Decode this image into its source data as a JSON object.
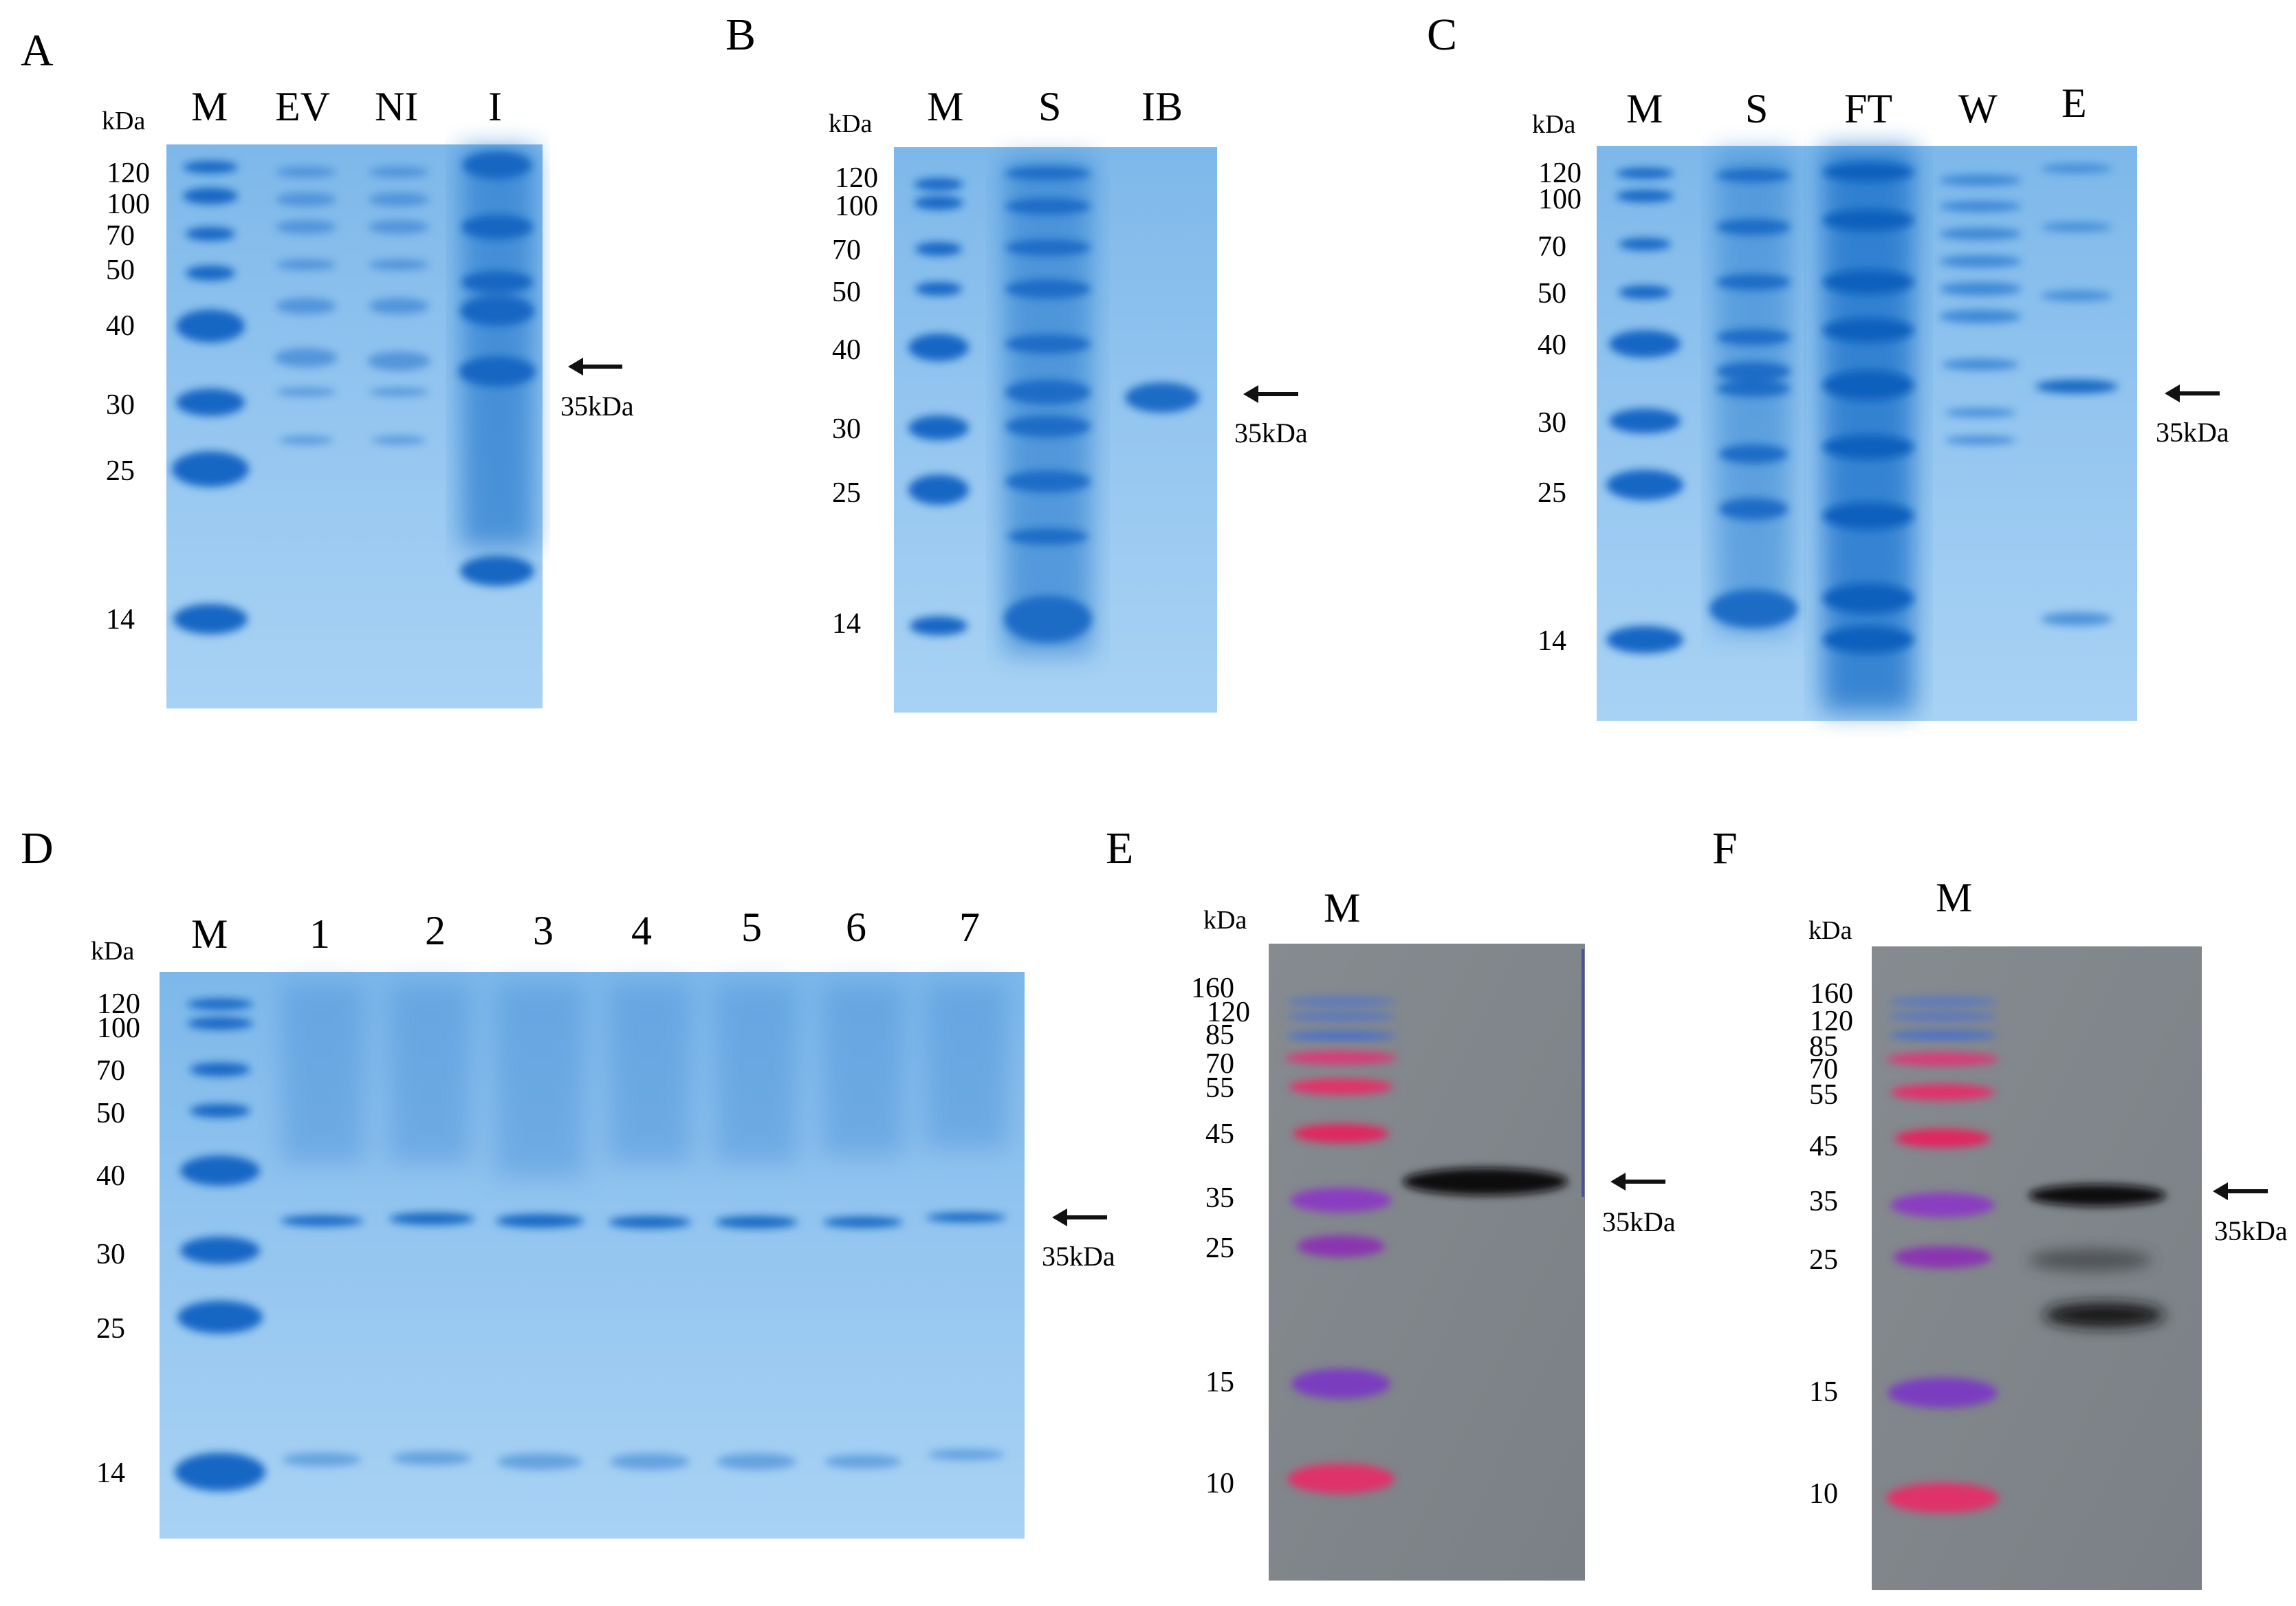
{
  "kda_unit": "kDa",
  "band_note": "35kDa",
  "panels": [
    {
      "id": "A",
      "lanes": [
        "M",
        "EV",
        "NI",
        "I"
      ],
      "markers": [
        "120",
        "100",
        "70",
        "50",
        "40",
        "30",
        "25",
        "14"
      ]
    },
    {
      "id": "B",
      "lanes": [
        "M",
        "S",
        "IB"
      ],
      "markers": [
        "120",
        "100",
        "70",
        "50",
        "40",
        "30",
        "25",
        "14"
      ]
    },
    {
      "id": "C",
      "lanes": [
        "M",
        "S",
        "FT",
        "W",
        "E"
      ],
      "markers": [
        "120",
        "100",
        "70",
        "50",
        "40",
        "30",
        "25",
        "14"
      ]
    },
    {
      "id": "D",
      "lanes": [
        "M",
        "1",
        "2",
        "3",
        "4",
        "5",
        "6",
        "7"
      ],
      "markers": [
        "120",
        "100",
        "70",
        "50",
        "40",
        "30",
        "25",
        "14"
      ]
    },
    {
      "id": "E",
      "lanes": [
        "M"
      ],
      "markers": [
        "160",
        "120",
        "85",
        "70",
        "55",
        "45",
        "35",
        "25",
        "15",
        "10"
      ]
    },
    {
      "id": "F",
      "lanes": [
        "M"
      ],
      "markers": [
        "160",
        "120",
        "85",
        "70",
        "55",
        "45",
        "35",
        "25",
        "15",
        "10"
      ]
    }
  ],
  "colors": {
    "gel_background": "#9ccbef",
    "gel_band": "#1a6fc8",
    "blot_background": "#7f858a",
    "marker_red": "#e0306a",
    "marker_purple": "#8a3cc0",
    "marker_blue": "#4a78c8",
    "blot_band": "#0a0a0a"
  }
}
